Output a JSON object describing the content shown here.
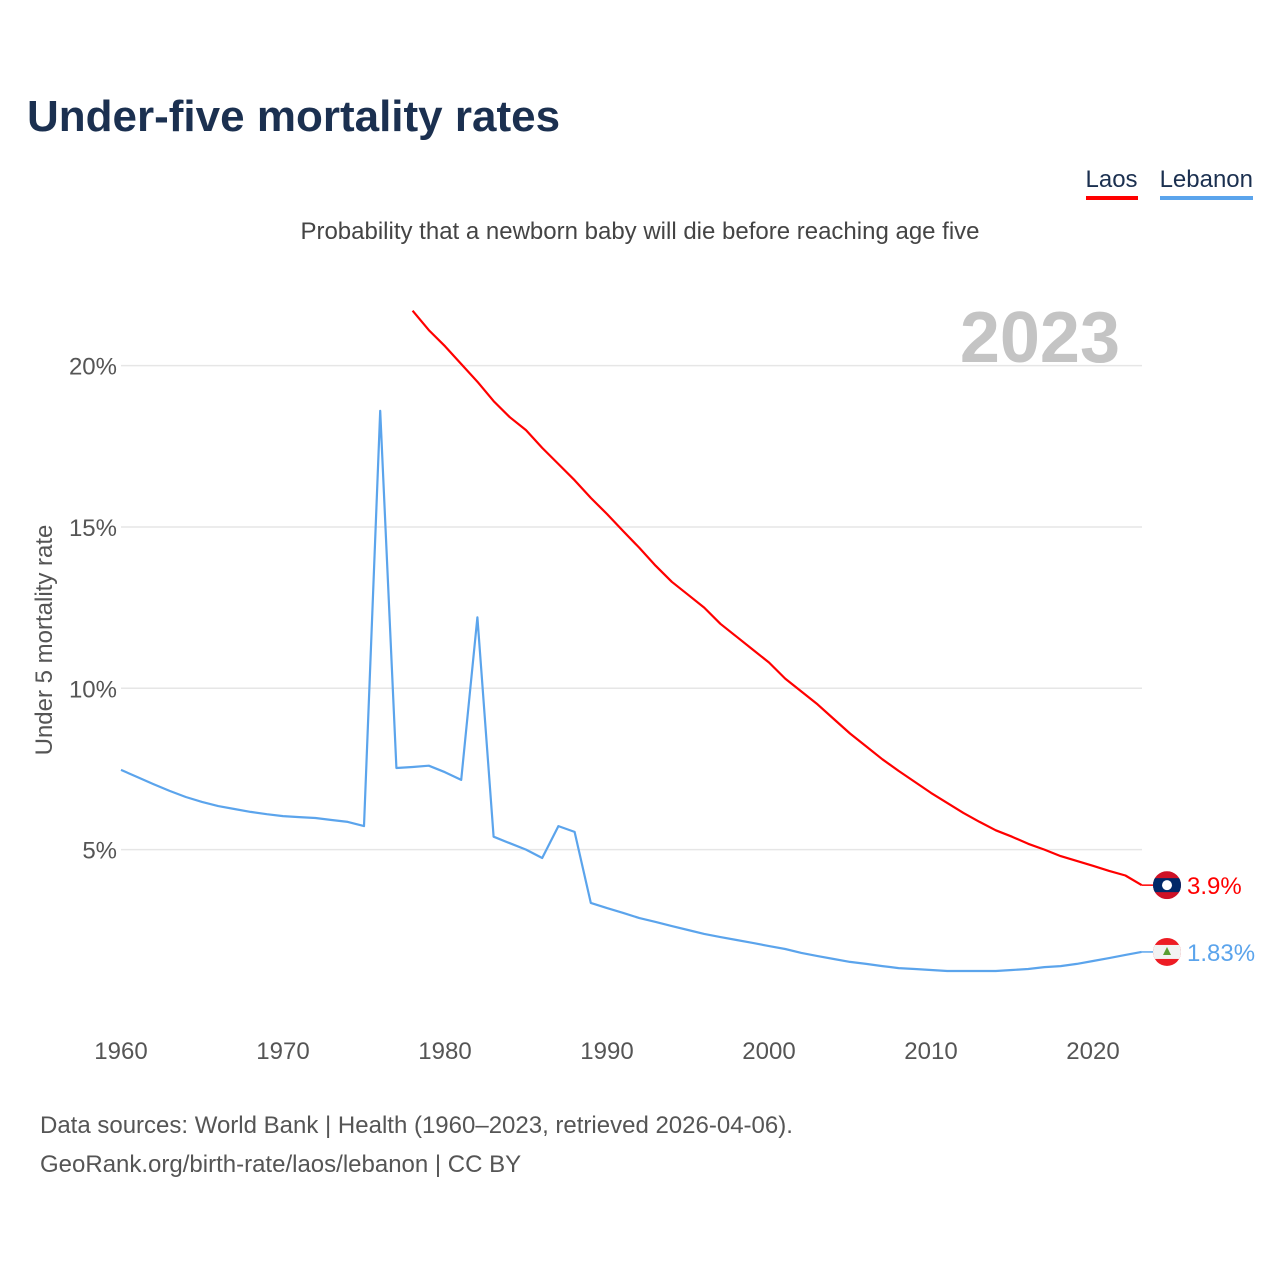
{
  "title": "Under-five mortality rates",
  "subtitle": "Probability that a newborn baby will die before reaching age five",
  "footer": {
    "line1": "Data sources: World Bank | Health (1960–2023, retrieved 2026-04-06).",
    "line2": "GeoRank.org/birth-rate/laos/lebanon | CC BY"
  },
  "chart_data": {
    "type": "line",
    "title": "Under-five mortality rates",
    "ylabel": "Under 5 mortality rate",
    "year_label": "2023",
    "xlim": [
      1960,
      2023
    ],
    "ylim": [
      0,
      22
    ],
    "x_ticks": [
      "1960",
      "1970",
      "1980",
      "1990",
      "2000",
      "2010",
      "2020"
    ],
    "y_ticks": [
      {
        "v": 5,
        "label": "5%"
      },
      {
        "v": 10,
        "label": "10%"
      },
      {
        "v": 15,
        "label": "15%"
      },
      {
        "v": 20,
        "label": "20%"
      }
    ],
    "grid": true,
    "legend_position": "top-right",
    "series": [
      {
        "name": "Laos",
        "color": "#ff0000",
        "end_label": "3.9%",
        "flag": "laos-flag-icon",
        "start": 1978,
        "values": [
          21.7,
          21.1,
          20.6,
          20.05,
          19.5,
          18.9,
          18.4,
          18.0,
          17.45,
          16.95,
          16.45,
          15.9,
          15.4,
          14.87,
          14.35,
          13.8,
          13.3,
          12.9,
          12.5,
          12.0,
          11.6,
          11.2,
          10.8,
          10.3,
          9.9,
          9.5,
          9.05,
          8.6,
          8.2,
          7.8,
          7.44,
          7.1,
          6.76,
          6.45,
          6.14,
          5.86,
          5.6,
          5.4,
          5.18,
          5.0,
          4.8,
          4.65,
          4.5,
          4.34,
          4.2,
          3.9
        ]
      },
      {
        "name": "Lebanon",
        "color": "#5ba4ec",
        "end_label": "1.83%",
        "flag": "lebanon-flag-icon",
        "start": 1960,
        "values": [
          7.47,
          7.25,
          7.03,
          6.82,
          6.63,
          6.48,
          6.35,
          6.26,
          6.17,
          6.1,
          6.04,
          6.01,
          5.98,
          5.92,
          5.86,
          5.73,
          18.6,
          7.53,
          7.56,
          7.6,
          7.4,
          7.16,
          12.2,
          5.4,
          5.2,
          5.0,
          4.74,
          5.73,
          5.55,
          3.35,
          3.19,
          3.04,
          2.88,
          2.76,
          2.63,
          2.51,
          2.39,
          2.29,
          2.2,
          2.11,
          2.01,
          1.92,
          1.8,
          1.7,
          1.61,
          1.52,
          1.46,
          1.39,
          1.33,
          1.3,
          1.27,
          1.24,
          1.24,
          1.24,
          1.24,
          1.27,
          1.3,
          1.36,
          1.39,
          1.46,
          1.55,
          1.64,
          1.74,
          1.83
        ]
      }
    ]
  }
}
